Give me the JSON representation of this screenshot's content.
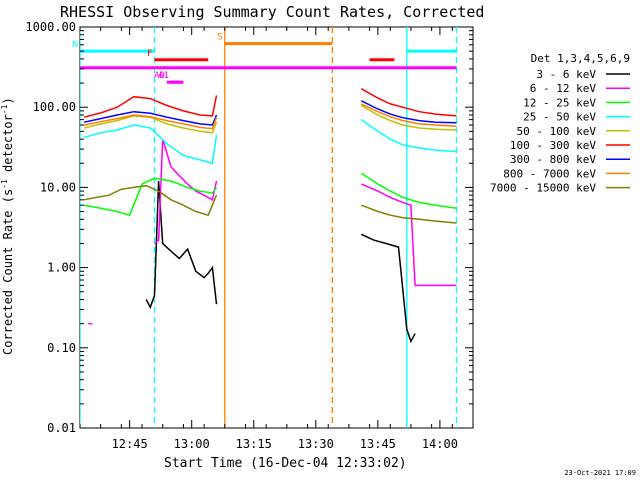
{
  "chart_data": {
    "type": "line",
    "title": "RHESSI Observing Summary Count Rates, Corrected",
    "xlabel": "Start Time (16-Dec-04 12:33:02)",
    "ylabel_pre": "Corrected Count Rate (s",
    "ylabel_sup": "-1",
    "ylabel_post": " detector",
    "ylabel_end": ")",
    "footer": "23-Oct-2021 17:09",
    "yscale": "log",
    "xlim": [
      "12:33",
      "14:08"
    ],
    "ylim": [
      0.01,
      1000
    ],
    "y_ticks": [
      {
        "v": 1000,
        "label": "1000.00"
      },
      {
        "v": 100,
        "label": "100.00"
      },
      {
        "v": 10,
        "label": "10.00"
      },
      {
        "v": 1,
        "label": "1.00"
      },
      {
        "v": 0.1,
        "label": "0.10"
      },
      {
        "v": 0.01,
        "label": "0.01"
      }
    ],
    "x_ticks": [
      {
        "t": "12:45",
        "label": "12:45"
      },
      {
        "t": "13:00",
        "label": "13:00"
      },
      {
        "t": "13:15",
        "label": "13:15"
      },
      {
        "t": "13:30",
        "label": "13:30"
      },
      {
        "t": "13:45",
        "label": "13:45"
      },
      {
        "t": "14:00",
        "label": "14:00"
      }
    ],
    "legend_title": "Det 1,3,4,5,6,9",
    "legend_position": "right",
    "series": [
      {
        "name": "3 - 6 keV",
        "color": "#000000",
        "segments": [
          [
            [
              "12:49",
              0.4
            ],
            [
              "12:50",
              0.32
            ],
            [
              "12:51",
              0.45
            ],
            [
              "12:52",
              12
            ],
            [
              "12:53",
              2.0
            ],
            [
              "12:55",
              1.6
            ],
            [
              "12:57",
              1.3
            ],
            [
              "12:59",
              1.7
            ],
            [
              "13:01",
              0.9
            ],
            [
              "13:03",
              0.75
            ],
            [
              "13:04",
              0.85
            ],
            [
              "13:05",
              1.0
            ],
            [
              "13:06",
              0.35
            ]
          ],
          [
            [
              "13:41",
              2.6
            ],
            [
              "13:44",
              2.2
            ],
            [
              "13:47",
              2.0
            ],
            [
              "13:50",
              1.8
            ],
            [
              "13:51",
              0.55
            ],
            [
              "13:52",
              0.17
            ],
            [
              "13:53",
              0.12
            ],
            [
              "13:54",
              0.15
            ]
          ]
        ]
      },
      {
        "name": "6 - 12 keV",
        "color": "#ff00ff",
        "segments": [
          [
            [
              "12:35",
              0.2
            ],
            [
              "12:36",
              0.2
            ]
          ],
          [
            [
              "12:51",
              2.0
            ],
            [
              "12:52",
              2.2
            ],
            [
              "12:53",
              40
            ],
            [
              "12:55",
              18
            ],
            [
              "12:57",
              14
            ],
            [
              "12:59",
              11
            ],
            [
              "13:01",
              9
            ],
            [
              "13:03",
              8
            ],
            [
              "13:05",
              7
            ],
            [
              "13:06",
              12
            ]
          ],
          [
            [
              "13:41",
              11
            ],
            [
              "13:45",
              9
            ],
            [
              "13:48",
              7.5
            ],
            [
              "13:51",
              6.5
            ],
            [
              "13:53",
              6.0
            ],
            [
              "13:54",
              0.6
            ],
            [
              "14:04",
              0.6
            ]
          ]
        ]
      },
      {
        "name": "12 - 25 keV",
        "color": "#00ff00",
        "segments": [
          [
            [
              "12:34",
              6
            ],
            [
              "12:38",
              5.5
            ],
            [
              "12:42",
              5
            ],
            [
              "12:45",
              4.5
            ],
            [
              "12:48",
              11
            ],
            [
              "12:51",
              13
            ],
            [
              "12:55",
              12
            ],
            [
              "12:59",
              10
            ],
            [
              "13:02",
              9
            ],
            [
              "13:05",
              8.5
            ],
            [
              "13:06",
              10
            ]
          ],
          [
            [
              "13:41",
              15
            ],
            [
              "13:45",
              11
            ],
            [
              "13:48",
              9
            ],
            [
              "13:51",
              7.5
            ],
            [
              "13:55",
              6.5
            ],
            [
              "13:59",
              6
            ],
            [
              "14:04",
              5.5
            ]
          ]
        ]
      },
      {
        "name": "25 - 50 keV",
        "color": "#00ffff",
        "segments": [
          [
            [
              "12:34",
              42
            ],
            [
              "12:38",
              48
            ],
            [
              "12:42",
              52
            ],
            [
              "12:46",
              60
            ],
            [
              "12:50",
              55
            ],
            [
              "12:54",
              35
            ],
            [
              "12:58",
              25
            ],
            [
              "13:02",
              22
            ],
            [
              "13:05",
              20
            ],
            [
              "13:06",
              45
            ]
          ],
          [
            [
              "13:41",
              70
            ],
            [
              "13:45",
              50
            ],
            [
              "13:48",
              40
            ],
            [
              "13:51",
              34
            ],
            [
              "13:55",
              31
            ],
            [
              "13:59",
              29
            ],
            [
              "14:04",
              28
            ]
          ]
        ]
      },
      {
        "name": "50 - 100 keV",
        "color": "#c0c000",
        "segments": [
          [
            [
              "12:34",
              55
            ],
            [
              "12:38",
              62
            ],
            [
              "12:42",
              68
            ],
            [
              "12:46",
              78
            ],
            [
              "12:50",
              75
            ],
            [
              "12:54",
              62
            ],
            [
              "12:58",
              55
            ],
            [
              "13:02",
              50
            ],
            [
              "13:05",
              48
            ],
            [
              "13:06",
              65
            ]
          ],
          [
            [
              "13:41",
              105
            ],
            [
              "13:45",
              80
            ],
            [
              "13:48",
              68
            ],
            [
              "13:51",
              60
            ],
            [
              "13:55",
              55
            ],
            [
              "13:59",
              53
            ],
            [
              "14:04",
              52
            ]
          ]
        ]
      },
      {
        "name": "100 - 300 keV",
        "color": "#ff0000",
        "segments": [
          [
            [
              "12:34",
              75
            ],
            [
              "12:38",
              85
            ],
            [
              "12:42",
              100
            ],
            [
              "12:46",
              135
            ],
            [
              "12:50",
              128
            ],
            [
              "12:54",
              105
            ],
            [
              "12:58",
              90
            ],
            [
              "13:02",
              80
            ],
            [
              "13:05",
              78
            ],
            [
              "13:06",
              140
            ]
          ],
          [
            [
              "13:41",
              170
            ],
            [
              "13:45",
              130
            ],
            [
              "13:48",
              110
            ],
            [
              "13:51",
              100
            ],
            [
              "13:55",
              88
            ],
            [
              "13:59",
              82
            ],
            [
              "14:04",
              78
            ]
          ]
        ]
      },
      {
        "name": "300 - 800 keV",
        "color": "#0000ff",
        "segments": [
          [
            [
              "12:34",
              65
            ],
            [
              "12:38",
              72
            ],
            [
              "12:42",
              80
            ],
            [
              "12:46",
              88
            ],
            [
              "12:50",
              84
            ],
            [
              "12:54",
              75
            ],
            [
              "12:58",
              68
            ],
            [
              "13:02",
              62
            ],
            [
              "13:05",
              60
            ],
            [
              "13:06",
              80
            ]
          ],
          [
            [
              "13:41",
              120
            ],
            [
              "13:45",
              95
            ],
            [
              "13:48",
              82
            ],
            [
              "13:51",
              74
            ],
            [
              "13:55",
              68
            ],
            [
              "13:59",
              65
            ],
            [
              "14:04",
              64
            ]
          ]
        ]
      },
      {
        "name": "800 - 7000 keV",
        "color": "#ff8000",
        "segments": [
          [
            [
              "12:34",
              60
            ],
            [
              "12:38",
              66
            ],
            [
              "12:42",
              72
            ],
            [
              "12:46",
              80
            ],
            [
              "12:50",
              76
            ],
            [
              "12:54",
              68
            ],
            [
              "12:58",
              62
            ],
            [
              "13:02",
              56
            ],
            [
              "13:05",
              54
            ],
            [
              "13:06",
              75
            ]
          ],
          [
            [
              "13:41",
              110
            ],
            [
              "13:45",
              88
            ],
            [
              "13:48",
              76
            ],
            [
              "13:51",
              68
            ],
            [
              "13:55",
              62
            ],
            [
              "13:59",
              60
            ],
            [
              "14:04",
              58
            ]
          ]
        ]
      },
      {
        "name": "7000 - 15000 keV",
        "color": "#808000",
        "segments": [
          [
            [
              "12:34",
              7
            ],
            [
              "12:37",
              7.5
            ],
            [
              "12:40",
              8
            ],
            [
              "12:43",
              9.5
            ],
            [
              "12:46",
              10
            ],
            [
              "12:49",
              10.5
            ],
            [
              "12:52",
              9
            ],
            [
              "12:55",
              7
            ],
            [
              "12:58",
              6
            ],
            [
              "13:01",
              5
            ],
            [
              "13:04",
              4.5
            ],
            [
              "13:06",
              8
            ]
          ],
          [
            [
              "13:41",
              6
            ],
            [
              "13:45",
              5
            ],
            [
              "13:48",
              4.5
            ],
            [
              "13:51",
              4.2
            ],
            [
              "13:55",
              4.0
            ],
            [
              "13:59",
              3.8
            ],
            [
              "14:04",
              3.6
            ]
          ]
        ]
      }
    ],
    "bands": [
      {
        "label": "N",
        "color": "#00ffff",
        "y": 500,
        "intervals": [
          [
            "12:33",
            "12:51"
          ],
          [
            "13:52",
            "14:04"
          ]
        ]
      },
      {
        "label": "S",
        "color": "#ff8000",
        "y": 620,
        "intervals": [
          [
            "13:08",
            "13:34"
          ]
        ]
      },
      {
        "label": "F",
        "color": "#ff0000",
        "y": 390,
        "intervals": [
          [
            "12:51",
            "13:04"
          ],
          [
            "13:43",
            "13:49"
          ]
        ]
      },
      {
        "label": "",
        "color": "#ff00ff",
        "y": 310,
        "intervals": [
          [
            "12:33",
            "14:04"
          ]
        ]
      },
      {
        "label": "AD",
        "color": "#ff00ff",
        "y": 205,
        "intervals": [
          [
            "12:54",
            "12:58"
          ]
        ]
      },
      {
        "label": "A1",
        "color": "#ff00ff",
        "y": 205,
        "intervals": [
          [
            "12:55",
            "12:57"
          ]
        ]
      }
    ],
    "vlines": [
      {
        "t": "12:33",
        "color": "#00ffff",
        "style": "solid"
      },
      {
        "t": "12:51",
        "color": "#00ffff",
        "style": "dashed"
      },
      {
        "t": "13:08",
        "color": "#ff8000",
        "style": "solid"
      },
      {
        "t": "13:34",
        "color": "#ff8000",
        "style": "dashed"
      },
      {
        "t": "13:52",
        "color": "#00ffff",
        "style": "solid"
      },
      {
        "t": "14:04",
        "color": "#00ffff",
        "style": "dashed"
      }
    ]
  }
}
